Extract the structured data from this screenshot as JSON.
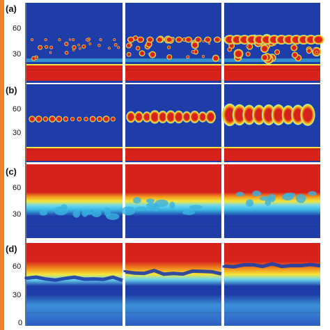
{
  "figure": {
    "rows": [
      {
        "label": "(a)",
        "ticks": [
          "60",
          "30"
        ]
      },
      {
        "label": "(b)",
        "ticks": [
          "60",
          "30"
        ]
      },
      {
        "label": "(c)",
        "ticks": [
          "60",
          "30"
        ]
      },
      {
        "label": "(d)",
        "ticks": [
          "60",
          "30",
          "0"
        ]
      }
    ],
    "colors": {
      "low": "#1e3da8",
      "mid_blue": "#3ab3e0",
      "cyan": "#6ad7f0",
      "yellow": "#f4e63a",
      "orange": "#f39a1e",
      "high": "#d7221c",
      "accent_bar": "#f0822a"
    }
  }
}
